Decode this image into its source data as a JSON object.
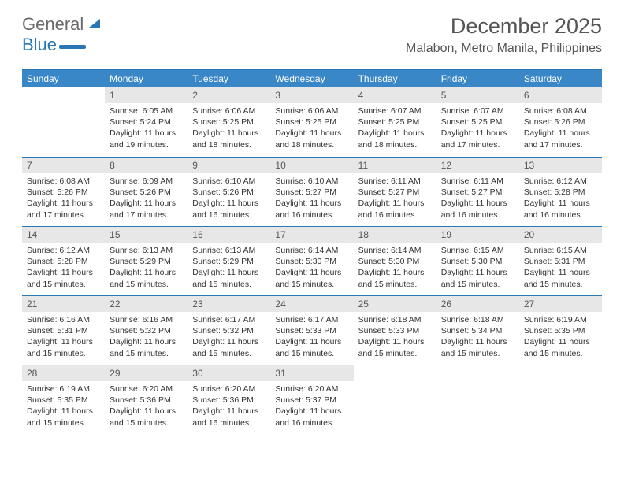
{
  "brand": {
    "word1": "General",
    "word2": "Blue"
  },
  "title": "December 2025",
  "location": "Malabon, Metro Manila, Philippines",
  "colors": {
    "accent": "#3a87c8",
    "accent_dark": "#2978b5",
    "daynum_bg": "#e7e7e7",
    "text_muted": "#555555",
    "text_body": "#333333",
    "background": "#ffffff"
  },
  "typography": {
    "title_fontsize": 27,
    "location_fontsize": 16,
    "weekday_fontsize": 12,
    "daynum_fontsize": 12,
    "body_fontsize": 10.5,
    "font_family": "Arial"
  },
  "layout": {
    "columns": 7,
    "rows": 5,
    "cell_min_height": 88,
    "row_divider_color": "#2978b5"
  },
  "weekdays": [
    "Sunday",
    "Monday",
    "Tuesday",
    "Wednesday",
    "Thursday",
    "Friday",
    "Saturday"
  ],
  "weeks": [
    [
      {
        "day": "",
        "sunrise": "",
        "sunset": "",
        "daylight": "",
        "empty": true
      },
      {
        "day": "1",
        "sunrise": "Sunrise: 6:05 AM",
        "sunset": "Sunset: 5:24 PM",
        "daylight": "Daylight: 11 hours and 19 minutes."
      },
      {
        "day": "2",
        "sunrise": "Sunrise: 6:06 AM",
        "sunset": "Sunset: 5:25 PM",
        "daylight": "Daylight: 11 hours and 18 minutes."
      },
      {
        "day": "3",
        "sunrise": "Sunrise: 6:06 AM",
        "sunset": "Sunset: 5:25 PM",
        "daylight": "Daylight: 11 hours and 18 minutes."
      },
      {
        "day": "4",
        "sunrise": "Sunrise: 6:07 AM",
        "sunset": "Sunset: 5:25 PM",
        "daylight": "Daylight: 11 hours and 18 minutes."
      },
      {
        "day": "5",
        "sunrise": "Sunrise: 6:07 AM",
        "sunset": "Sunset: 5:25 PM",
        "daylight": "Daylight: 11 hours and 17 minutes."
      },
      {
        "day": "6",
        "sunrise": "Sunrise: 6:08 AM",
        "sunset": "Sunset: 5:26 PM",
        "daylight": "Daylight: 11 hours and 17 minutes."
      }
    ],
    [
      {
        "day": "7",
        "sunrise": "Sunrise: 6:08 AM",
        "sunset": "Sunset: 5:26 PM",
        "daylight": "Daylight: 11 hours and 17 minutes."
      },
      {
        "day": "8",
        "sunrise": "Sunrise: 6:09 AM",
        "sunset": "Sunset: 5:26 PM",
        "daylight": "Daylight: 11 hours and 17 minutes."
      },
      {
        "day": "9",
        "sunrise": "Sunrise: 6:10 AM",
        "sunset": "Sunset: 5:26 PM",
        "daylight": "Daylight: 11 hours and 16 minutes."
      },
      {
        "day": "10",
        "sunrise": "Sunrise: 6:10 AM",
        "sunset": "Sunset: 5:27 PM",
        "daylight": "Daylight: 11 hours and 16 minutes."
      },
      {
        "day": "11",
        "sunrise": "Sunrise: 6:11 AM",
        "sunset": "Sunset: 5:27 PM",
        "daylight": "Daylight: 11 hours and 16 minutes."
      },
      {
        "day": "12",
        "sunrise": "Sunrise: 6:11 AM",
        "sunset": "Sunset: 5:27 PM",
        "daylight": "Daylight: 11 hours and 16 minutes."
      },
      {
        "day": "13",
        "sunrise": "Sunrise: 6:12 AM",
        "sunset": "Sunset: 5:28 PM",
        "daylight": "Daylight: 11 hours and 16 minutes."
      }
    ],
    [
      {
        "day": "14",
        "sunrise": "Sunrise: 6:12 AM",
        "sunset": "Sunset: 5:28 PM",
        "daylight": "Daylight: 11 hours and 15 minutes."
      },
      {
        "day": "15",
        "sunrise": "Sunrise: 6:13 AM",
        "sunset": "Sunset: 5:29 PM",
        "daylight": "Daylight: 11 hours and 15 minutes."
      },
      {
        "day": "16",
        "sunrise": "Sunrise: 6:13 AM",
        "sunset": "Sunset: 5:29 PM",
        "daylight": "Daylight: 11 hours and 15 minutes."
      },
      {
        "day": "17",
        "sunrise": "Sunrise: 6:14 AM",
        "sunset": "Sunset: 5:30 PM",
        "daylight": "Daylight: 11 hours and 15 minutes."
      },
      {
        "day": "18",
        "sunrise": "Sunrise: 6:14 AM",
        "sunset": "Sunset: 5:30 PM",
        "daylight": "Daylight: 11 hours and 15 minutes."
      },
      {
        "day": "19",
        "sunrise": "Sunrise: 6:15 AM",
        "sunset": "Sunset: 5:30 PM",
        "daylight": "Daylight: 11 hours and 15 minutes."
      },
      {
        "day": "20",
        "sunrise": "Sunrise: 6:15 AM",
        "sunset": "Sunset: 5:31 PM",
        "daylight": "Daylight: 11 hours and 15 minutes."
      }
    ],
    [
      {
        "day": "21",
        "sunrise": "Sunrise: 6:16 AM",
        "sunset": "Sunset: 5:31 PM",
        "daylight": "Daylight: 11 hours and 15 minutes."
      },
      {
        "day": "22",
        "sunrise": "Sunrise: 6:16 AM",
        "sunset": "Sunset: 5:32 PM",
        "daylight": "Daylight: 11 hours and 15 minutes."
      },
      {
        "day": "23",
        "sunrise": "Sunrise: 6:17 AM",
        "sunset": "Sunset: 5:32 PM",
        "daylight": "Daylight: 11 hours and 15 minutes."
      },
      {
        "day": "24",
        "sunrise": "Sunrise: 6:17 AM",
        "sunset": "Sunset: 5:33 PM",
        "daylight": "Daylight: 11 hours and 15 minutes."
      },
      {
        "day": "25",
        "sunrise": "Sunrise: 6:18 AM",
        "sunset": "Sunset: 5:33 PM",
        "daylight": "Daylight: 11 hours and 15 minutes."
      },
      {
        "day": "26",
        "sunrise": "Sunrise: 6:18 AM",
        "sunset": "Sunset: 5:34 PM",
        "daylight": "Daylight: 11 hours and 15 minutes."
      },
      {
        "day": "27",
        "sunrise": "Sunrise: 6:19 AM",
        "sunset": "Sunset: 5:35 PM",
        "daylight": "Daylight: 11 hours and 15 minutes."
      }
    ],
    [
      {
        "day": "28",
        "sunrise": "Sunrise: 6:19 AM",
        "sunset": "Sunset: 5:35 PM",
        "daylight": "Daylight: 11 hours and 15 minutes."
      },
      {
        "day": "29",
        "sunrise": "Sunrise: 6:20 AM",
        "sunset": "Sunset: 5:36 PM",
        "daylight": "Daylight: 11 hours and 15 minutes."
      },
      {
        "day": "30",
        "sunrise": "Sunrise: 6:20 AM",
        "sunset": "Sunset: 5:36 PM",
        "daylight": "Daylight: 11 hours and 16 minutes."
      },
      {
        "day": "31",
        "sunrise": "Sunrise: 6:20 AM",
        "sunset": "Sunset: 5:37 PM",
        "daylight": "Daylight: 11 hours and 16 minutes."
      },
      {
        "day": "",
        "sunrise": "",
        "sunset": "",
        "daylight": "",
        "empty": true
      },
      {
        "day": "",
        "sunrise": "",
        "sunset": "",
        "daylight": "",
        "empty": true
      },
      {
        "day": "",
        "sunrise": "",
        "sunset": "",
        "daylight": "",
        "empty": true
      }
    ]
  ]
}
